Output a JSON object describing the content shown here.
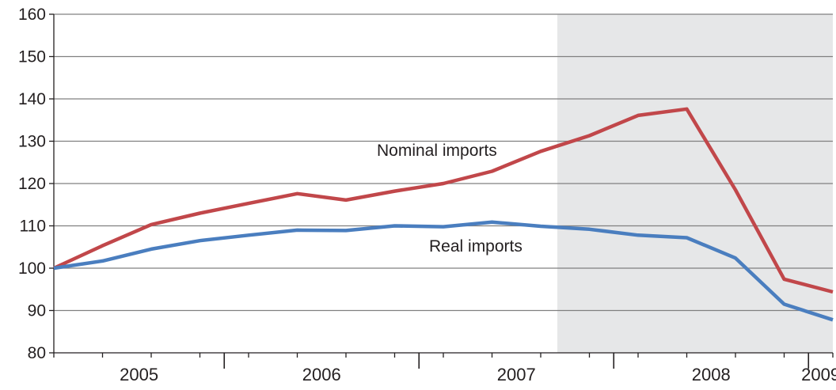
{
  "chart_data": {
    "type": "line",
    "title": "",
    "xlabel": "",
    "ylabel": "",
    "ylim": [
      80,
      160
    ],
    "yticks": [
      "80",
      "90",
      "100",
      "110",
      "120",
      "130",
      "140",
      "150",
      "160"
    ],
    "x_period_labels": [
      "2005",
      "2006",
      "2007",
      "2008",
      "2009"
    ],
    "grid": true,
    "shaded_region_color": "#e6e7e8",
    "series": [
      {
        "name": "Nominal imports",
        "color": "#c1474a",
        "values": [
          100,
          105.3,
          110.3,
          113,
          115.3,
          117.6,
          116.1,
          118.2,
          120.0,
          122.9,
          127.6,
          131.3,
          136.1,
          137.6,
          118.5,
          97.4,
          94.4
        ]
      },
      {
        "name": "Real imports",
        "color": "#4a7ebf",
        "values": [
          100,
          101.7,
          104.5,
          106.5,
          107.8,
          109.0,
          108.9,
          110.0,
          109.8,
          110.9,
          109.9,
          109.2,
          107.8,
          107.2,
          102.4,
          91.5,
          87.8
        ]
      }
    ]
  }
}
